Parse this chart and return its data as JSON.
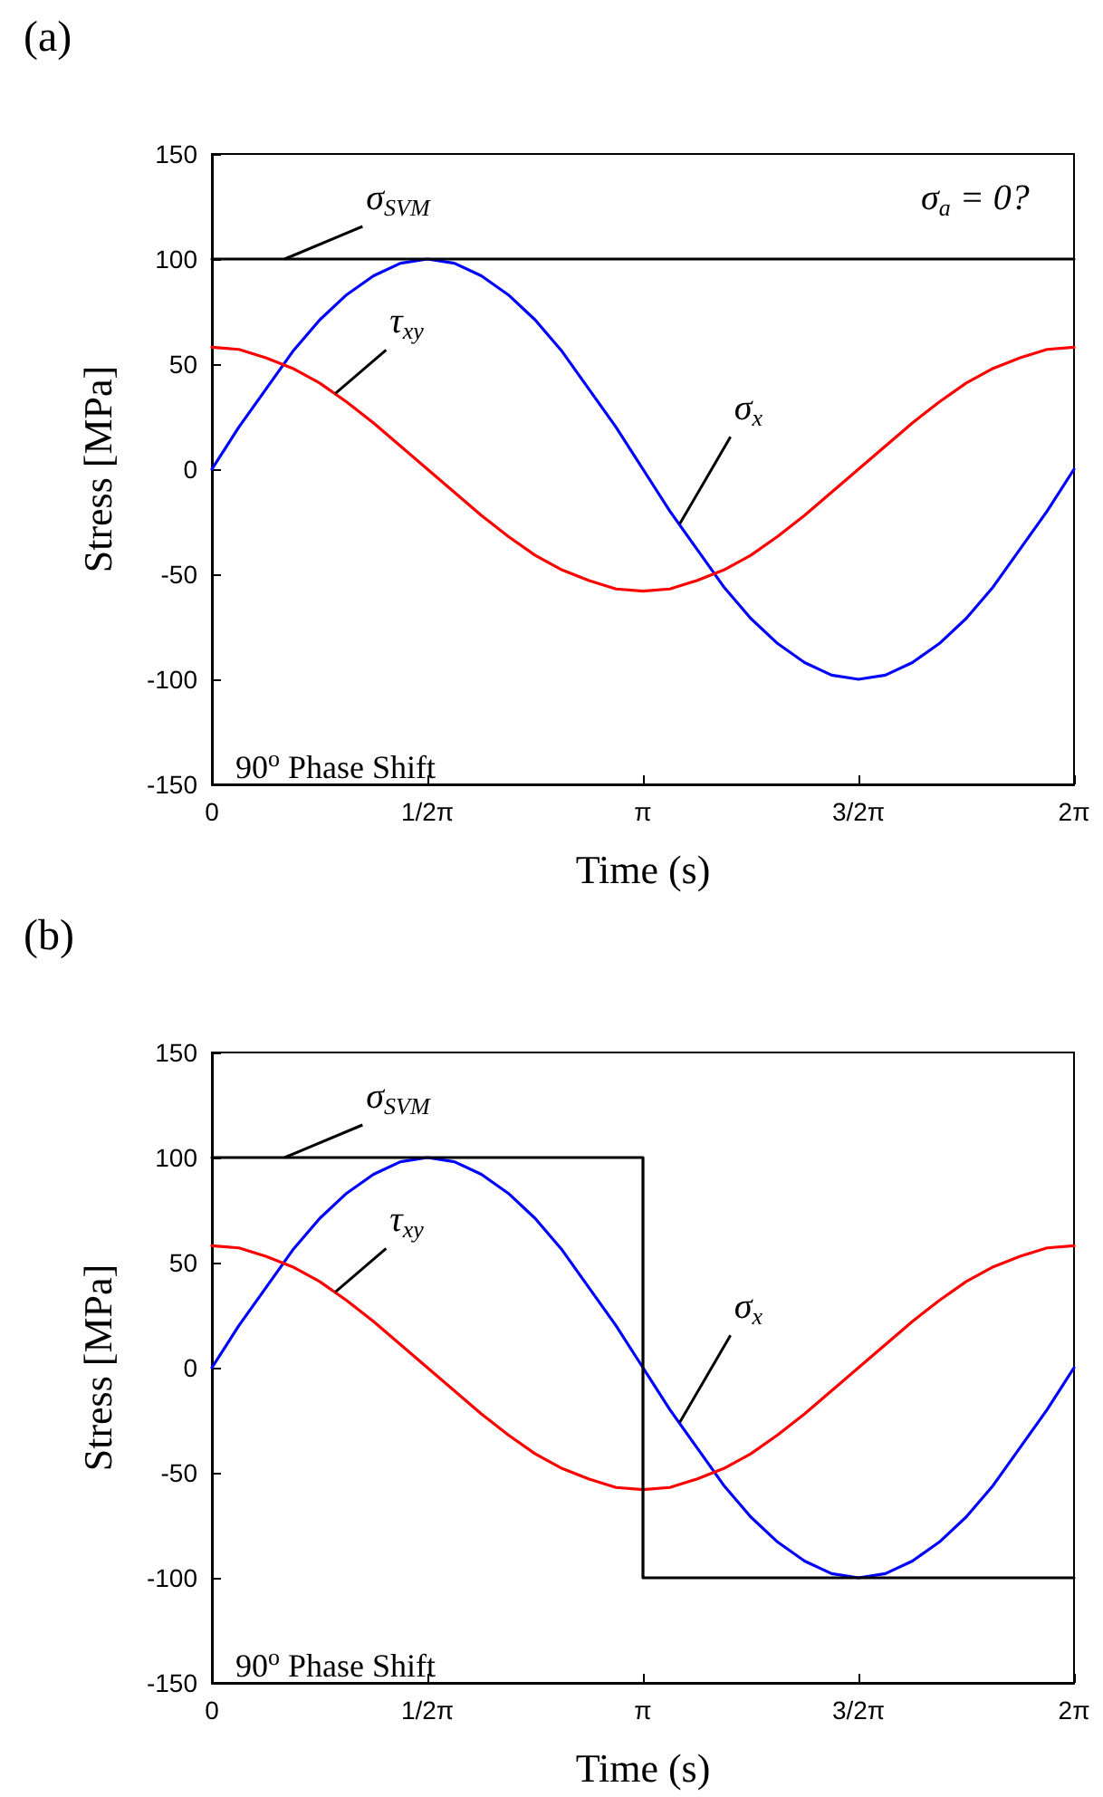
{
  "chart_data": [
    {
      "type": "line",
      "title": "(a)",
      "xlabel": "Time (s)",
      "ylabel": "Stress [MPa]",
      "x": [
        0,
        0.1963,
        0.3927,
        0.589,
        0.7854,
        0.9817,
        1.1781,
        1.3744,
        1.5708,
        1.7671,
        1.9635,
        2.1598,
        2.3562,
        2.5525,
        2.7489,
        2.9452,
        3.1416,
        3.3379,
        3.5343,
        3.7306,
        3.927,
        4.1233,
        4.3197,
        4.516,
        4.7124,
        4.9087,
        5.1051,
        5.3014,
        5.4978,
        5.6941,
        5.8905,
        6.0868,
        6.2832
      ],
      "series": [
        {
          "color": "#0000ff",
          "values": [
            0,
            20,
            38,
            56,
            71,
            83,
            92,
            98,
            100,
            98,
            92,
            83,
            71,
            56,
            38,
            20,
            0,
            -20,
            -38,
            -56,
            -71,
            -83,
            -92,
            -98,
            -100,
            -98,
            -92,
            -83,
            -71,
            -56,
            -38,
            -20,
            0
          ]
        },
        {
          "color": "#ff0000",
          "values": [
            58,
            57,
            53,
            48,
            41,
            32,
            22,
            11,
            0,
            -11,
            -22,
            -32,
            -41,
            -48,
            -53,
            -57,
            -58,
            -57,
            -53,
            -48,
            -41,
            -32,
            -22,
            -11,
            0,
            11,
            22,
            32,
            41,
            48,
            53,
            57,
            58
          ]
        },
        {
          "color": "#000000",
          "x": [
            0,
            6.2832
          ],
          "values": [
            100,
            100
          ]
        }
      ],
      "annotations": [
        {
          "text": "σ$_{SVM}$",
          "x": 0.53,
          "y": 100
        },
        {
          "text": "τ$_{xy}$",
          "x": 0.9,
          "y": 36
        },
        {
          "text": "σ$_{x}$",
          "x": 3.41,
          "y": -26
        },
        {
          "text": "σ$_{a}$ = 0?",
          "x": 5.3,
          "y": 100
        },
        "90$^{o}$ Phase Shift"
      ],
      "xlim": [
        0,
        6.2832
      ],
      "xticks": [
        0,
        {
          "value": 1.5708,
          "label": "1/2π"
        },
        {
          "value": 3.1416,
          "label": "π"
        },
        {
          "value": 4.7124,
          "label": "3/2π"
        },
        {
          "value": 6.2832,
          "label": "2π"
        }
      ],
      "ylim": [
        -150,
        150
      ],
      "yticks": [
        -150,
        -100,
        -50,
        0,
        50,
        100,
        150
      ],
      "grid": false,
      "marker": "none",
      "line_style": "solid"
    },
    {
      "type": "line",
      "title": "(b)",
      "xlabel": "Time (s)",
      "ylabel": "Stress [MPa]",
      "x": [
        0,
        0.1963,
        0.3927,
        0.589,
        0.7854,
        0.9817,
        1.1781,
        1.3744,
        1.5708,
        1.7671,
        1.9635,
        2.1598,
        2.3562,
        2.5525,
        2.7489,
        2.9452,
        3.1416,
        3.3379,
        3.5343,
        3.7306,
        3.927,
        4.1233,
        4.3197,
        4.516,
        4.7124,
        4.9087,
        5.1051,
        5.3014,
        5.4978,
        5.6941,
        5.8905,
        6.0868,
        6.2832
      ],
      "series": [
        {
          "color": "#0000ff",
          "values": [
            0,
            20,
            38,
            56,
            71,
            83,
            92,
            98,
            100,
            98,
            92,
            83,
            71,
            56,
            38,
            20,
            0,
            -20,
            -38,
            -56,
            -71,
            -83,
            -92,
            -98,
            -100,
            -98,
            -92,
            -83,
            -71,
            -56,
            -38,
            -20,
            0
          ]
        },
        {
          "color": "#ff0000",
          "values": [
            58,
            57,
            53,
            48,
            41,
            32,
            22,
            11,
            0,
            -11,
            -22,
            -32,
            -41,
            -48,
            -53,
            -57,
            -58,
            -57,
            -53,
            -48,
            -41,
            -32,
            -22,
            -11,
            0,
            11,
            22,
            32,
            41,
            48,
            53,
            57,
            58
          ]
        },
        {
          "color": "#000000",
          "x": [
            0,
            3.1416,
            3.1416,
            6.2832
          ],
          "values": [
            100,
            100,
            -100,
            -100
          ]
        }
      ],
      "annotations": [
        {
          "text": "σ$_{SVM}$",
          "x": 0.53,
          "y": 100
        },
        {
          "text": "τ$_{xy}$",
          "x": 0.9,
          "y": 36
        },
        {
          "text": "σ$_{x}$",
          "x": 3.41,
          "y": -26
        },
        "90$^{o}$ Phase Shift"
      ],
      "xlim": [
        0,
        6.2832
      ],
      "xticks": [
        0,
        {
          "value": 1.5708,
          "label": "1/2π"
        },
        {
          "value": 3.1416,
          "label": "π"
        },
        {
          "value": 4.7124,
          "label": "3/2π"
        },
        {
          "value": 6.2832,
          "label": "2π"
        }
      ],
      "ylim": [
        -150,
        150
      ],
      "yticks": [
        -150,
        -100,
        -50,
        0,
        50,
        100,
        150
      ],
      "grid": false,
      "marker": "none",
      "line_style": "solid"
    }
  ]
}
